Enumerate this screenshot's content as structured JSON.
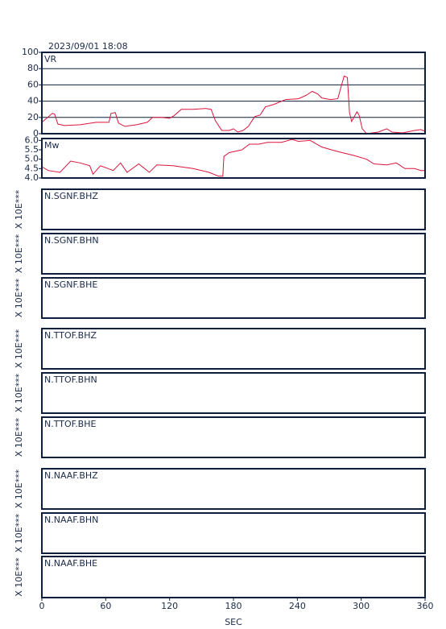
{
  "chart_data": [
    {
      "type": "line",
      "title": "2023/09/01 18:08",
      "label": "VR",
      "color": "#dc143c",
      "x": [
        0,
        4.5,
        9.8,
        12,
        15,
        21,
        36,
        51,
        63,
        65,
        69,
        72,
        78,
        89,
        99,
        104,
        112,
        120,
        124,
        131,
        142,
        154,
        159,
        163,
        169,
        176,
        180,
        184,
        189,
        194,
        200,
        205,
        210,
        218,
        229,
        241,
        248,
        254,
        259,
        263,
        271,
        278,
        281,
        284,
        287,
        289,
        291,
        296,
        298,
        301,
        305,
        316,
        324,
        329,
        339,
        350,
        356,
        360
      ],
      "values": [
        14,
        19,
        25,
        24,
        12,
        10,
        11,
        14,
        14,
        25,
        26,
        13,
        9,
        11,
        14,
        20,
        20,
        19,
        22,
        30,
        30,
        31,
        30,
        16,
        4,
        4,
        6,
        2,
        4,
        9,
        21,
        23,
        33,
        36,
        42,
        43,
        47,
        52,
        49,
        44,
        42,
        43,
        57,
        71,
        69,
        26,
        15,
        27,
        23,
        6,
        0,
        2,
        6,
        2,
        1,
        4,
        5,
        3
      ],
      "xlim": [
        0,
        360
      ],
      "ylim": [
        0,
        100
      ],
      "yticks": [
        0,
        20,
        40,
        60,
        80,
        100
      ],
      "grid": true
    },
    {
      "type": "line",
      "label": "Mw",
      "color": "#dc143c",
      "x": [
        0,
        6,
        17,
        27,
        36,
        45,
        48,
        55,
        67,
        74,
        80,
        91,
        101,
        108,
        123,
        142,
        157,
        166,
        170,
        171,
        176,
        188,
        195,
        204,
        212,
        225,
        235,
        241,
        252,
        263,
        272,
        282,
        293,
        305,
        312,
        324,
        333,
        341,
        350,
        356,
        360
      ],
      "values": [
        4.6,
        4.4,
        4.3,
        4.9,
        4.8,
        4.65,
        4.2,
        4.65,
        4.4,
        4.8,
        4.3,
        4.75,
        4.3,
        4.7,
        4.65,
        4.5,
        4.3,
        4.1,
        4.1,
        5.15,
        5.35,
        5.5,
        5.8,
        5.8,
        5.9,
        5.9,
        6.05,
        5.95,
        6.0,
        5.65,
        5.5,
        5.35,
        5.2,
        5.0,
        4.75,
        4.7,
        4.8,
        4.5,
        4.5,
        4.4,
        4.4
      ],
      "xlim": [
        0,
        360
      ],
      "ylim": [
        4,
        6.1
      ],
      "yticks": [
        {
          "value": 4,
          "label": "4.0"
        },
        {
          "value": 4.5,
          "label": "4.5"
        },
        {
          "value": 5,
          "label": "5.0"
        },
        {
          "value": 5.5,
          "label": "5.5"
        },
        {
          "value": 6,
          "label": "6.0"
        }
      ],
      "grid": false
    },
    {
      "type": "line",
      "label": "N.SGNF.BHZ",
      "ylabel": "X 10E***"
    },
    {
      "type": "line",
      "label": "N.SGNF.BHN",
      "ylabel": "X 10E***"
    },
    {
      "type": "line",
      "label": "N.SGNF.BHE",
      "ylabel": "X 10E***"
    },
    {
      "type": "line",
      "label": "N.TTOF.BHZ",
      "ylabel": "X 10E***"
    },
    {
      "type": "line",
      "label": "N.TTOF.BHN",
      "ylabel": "X 10E***"
    },
    {
      "type": "line",
      "label": "N.TTOF.BHE",
      "ylabel": "X 10E***"
    },
    {
      "type": "line",
      "label": "N.NAAF.BHZ",
      "ylabel": "X 10E***"
    },
    {
      "type": "line",
      "label": "N.NAAF.BHN",
      "ylabel": "X 10E***"
    },
    {
      "type": "line",
      "label": "N.NAAF.BHE",
      "ylabel": "X 10E***",
      "xlim": [
        0,
        360
      ],
      "xticks": [
        0,
        60,
        120,
        180,
        240,
        300,
        360
      ],
      "xlabel": "SEC"
    }
  ]
}
